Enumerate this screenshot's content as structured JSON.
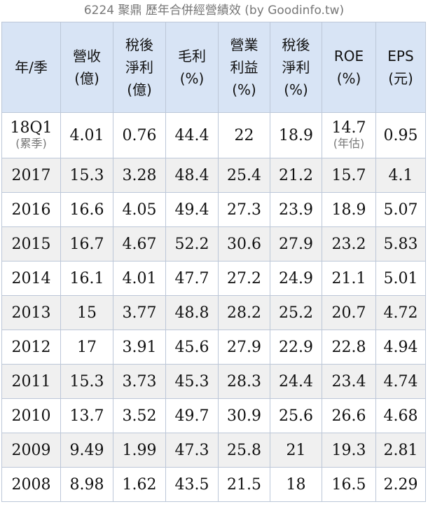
{
  "caption": "6224 聚鼎 歷年合併經營績效 (by Goodinfo.tw)",
  "headers": [
    [
      "年/季"
    ],
    [
      "營收",
      "(億)"
    ],
    [
      "稅後",
      "淨利",
      "(億)"
    ],
    [
      "毛利",
      "(%)"
    ],
    [
      "營業",
      "利益",
      "(%)"
    ],
    [
      "稅後",
      "淨利",
      "(%)"
    ],
    [
      "ROE",
      "(%)"
    ],
    [
      "EPS",
      "(元)"
    ]
  ],
  "first_row": {
    "period": "18Q1",
    "period_note": "(累季)",
    "revenue": "4.01",
    "net_income": "0.76",
    "gross_margin": "44.4",
    "operating_margin": "22",
    "net_margin": "18.9",
    "roe": "14.7",
    "roe_note": "(年估)",
    "eps": "0.95"
  },
  "rows": [
    [
      "2017",
      "15.3",
      "3.28",
      "48.4",
      "25.4",
      "21.2",
      "15.7",
      "4.1"
    ],
    [
      "2016",
      "16.6",
      "4.05",
      "49.4",
      "27.3",
      "23.9",
      "18.9",
      "5.07"
    ],
    [
      "2015",
      "16.7",
      "4.67",
      "52.2",
      "30.6",
      "27.9",
      "23.2",
      "5.83"
    ],
    [
      "2014",
      "16.1",
      "4.01",
      "47.7",
      "27.2",
      "24.9",
      "21.1",
      "5.01"
    ],
    [
      "2013",
      "15",
      "3.77",
      "48.8",
      "28.2",
      "25.2",
      "20.7",
      "4.72"
    ],
    [
      "2012",
      "17",
      "3.91",
      "45.6",
      "27.9",
      "22.9",
      "22.8",
      "4.94"
    ],
    [
      "2011",
      "15.3",
      "3.73",
      "45.3",
      "28.3",
      "24.4",
      "23.4",
      "4.74"
    ],
    [
      "2010",
      "13.7",
      "3.52",
      "49.7",
      "30.9",
      "25.6",
      "26.6",
      "4.68"
    ],
    [
      "2009",
      "9.49",
      "1.99",
      "47.3",
      "25.8",
      "21",
      "19.3",
      "2.81"
    ],
    [
      "2008",
      "8.98",
      "1.62",
      "43.5",
      "21.5",
      "18",
      "16.5",
      "2.29"
    ]
  ]
}
